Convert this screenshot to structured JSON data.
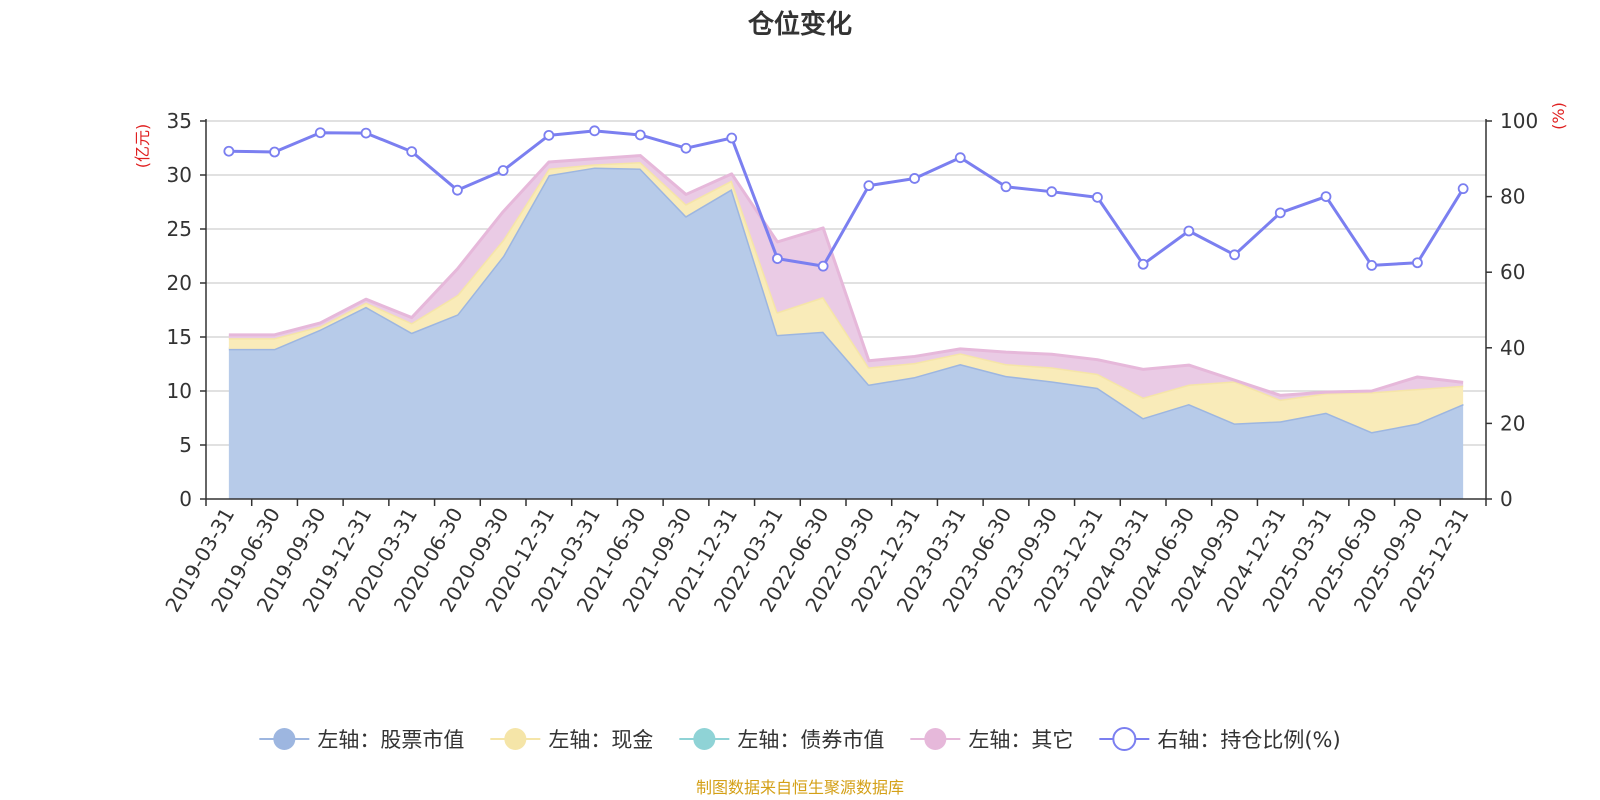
{
  "chart_data": {
    "type": "area",
    "title": "仓位变化",
    "source": "制图数据来自恒生聚源数据库",
    "y_left_unit": "(亿元)",
    "y_right_unit": "(%)",
    "y_left": {
      "min": 0,
      "max": 35,
      "ticks": [
        0,
        5,
        10,
        15,
        20,
        25,
        30,
        35
      ]
    },
    "y_right": {
      "min": 0,
      "max": 100,
      "ticks": [
        0,
        20,
        40,
        60,
        80,
        100
      ]
    },
    "grid": true,
    "legend_position": "bottom",
    "categories": [
      "2019-03-31",
      "2019-06-30",
      "2019-09-30",
      "2019-12-31",
      "2020-03-31",
      "2020-06-30",
      "2020-09-30",
      "2020-12-31",
      "2021-03-31",
      "2021-06-30",
      "2021-09-30",
      "2021-12-31",
      "2022-03-31",
      "2022-06-30",
      "2022-09-30",
      "2022-12-31",
      "2023-03-31",
      "2023-06-30",
      "2023-09-30",
      "2023-12-31",
      "2024-03-31",
      "2024-06-30",
      "2024-09-30",
      "2024-12-31",
      "2025-03-31",
      "2025-06-30",
      "2025-09-30",
      "2025-12-31"
    ],
    "series": [
      {
        "name": "左轴：股票市值",
        "axis": "left",
        "stack": "total",
        "kind": "area",
        "color": "#9db6e0",
        "fill": "#b7cbe9",
        "values": [
          13.9,
          13.9,
          15.7,
          17.8,
          15.4,
          17.1,
          22.5,
          30.0,
          30.7,
          30.6,
          26.2,
          28.7,
          15.2,
          15.5,
          10.6,
          11.3,
          12.5,
          11.4,
          10.9,
          10.3,
          7.5,
          8.8,
          7.0,
          7.2,
          8.0,
          6.2,
          7.0,
          8.8
        ]
      },
      {
        "name": "左轴：现金",
        "axis": "left",
        "stack": "total",
        "kind": "area",
        "color": "#f5e5a8",
        "fill": "#f9ebb9",
        "values": [
          1.0,
          1.0,
          0.3,
          0.4,
          0.9,
          1.8,
          1.5,
          0.6,
          0.3,
          0.6,
          1.1,
          0.8,
          2.1,
          3.2,
          1.6,
          1.3,
          1.0,
          1.1,
          1.3,
          1.3,
          1.9,
          1.8,
          3.9,
          2.0,
          1.8,
          3.7,
          3.2,
          1.7
        ]
      },
      {
        "name": "左轴：债券市值",
        "axis": "left",
        "stack": "total",
        "kind": "area",
        "color": "#8fd3d6",
        "fill": "#bde6e7",
        "values": [
          0,
          0,
          0,
          0,
          0,
          0,
          0,
          0,
          0,
          0,
          0,
          0,
          0,
          0,
          0,
          0,
          0,
          0,
          0,
          0,
          0,
          0,
          0,
          0,
          0,
          0,
          0,
          0
        ]
      },
      {
        "name": "左轴：其它",
        "axis": "left",
        "stack": "total",
        "kind": "area",
        "color": "#e6b8da",
        "fill": "#eacbe5",
        "values": [
          0.3,
          0.3,
          0.3,
          0.3,
          0.5,
          2.4,
          2.6,
          0.6,
          0.5,
          0.6,
          0.9,
          0.6,
          6.5,
          6.4,
          0.6,
          0.6,
          0.4,
          1.1,
          1.2,
          1.3,
          2.6,
          1.8,
          0.1,
          0.4,
          0.1,
          0.1,
          1.1,
          0.3
        ]
      },
      {
        "name": "右轴：持仓比例(%)",
        "axis": "right",
        "kind": "line",
        "color": "#7b7ff0",
        "values": [
          92.0,
          91.8,
          96.9,
          96.8,
          91.9,
          81.7,
          86.9,
          96.2,
          97.4,
          96.3,
          92.8,
          95.5,
          63.6,
          61.6,
          82.9,
          84.8,
          90.3,
          82.6,
          81.3,
          79.8,
          62.1,
          70.9,
          64.6,
          75.7,
          80.0,
          61.8,
          62.5,
          82.1
        ]
      }
    ]
  }
}
